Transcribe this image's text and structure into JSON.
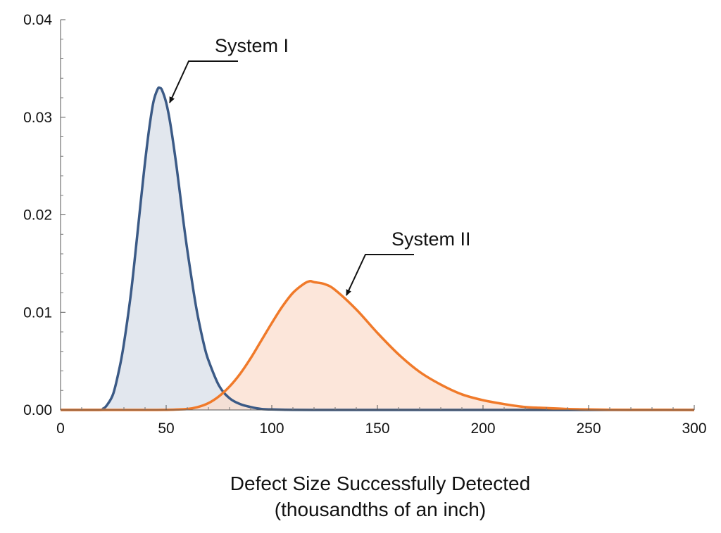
{
  "chart_data": {
    "type": "area",
    "title": "",
    "xlabel_lines": [
      "Defect Size Successfully Detected",
      "(thousandths of an inch)"
    ],
    "ylabel": "",
    "xlim": [
      0,
      300
    ],
    "ylim": [
      0,
      0.04
    ],
    "x_ticks": [
      0,
      50,
      100,
      150,
      200,
      250,
      300
    ],
    "x_tick_labels": [
      "0",
      "50",
      "100",
      "150",
      "200",
      "250",
      "300"
    ],
    "y_ticks": [
      0,
      0.01,
      0.02,
      0.03,
      0.04
    ],
    "y_tick_labels": [
      "0.00",
      "0.01",
      "0.02",
      "0.03",
      "0.04"
    ],
    "grid": false,
    "legend": "none",
    "series": [
      {
        "name": "System I",
        "color": "#3b5a86",
        "fill": "#d7dee7",
        "peak_x": 47,
        "peak_y": 0.033,
        "x": [
          0,
          18,
          20,
          22,
          25,
          28,
          30,
          33,
          35,
          38,
          40,
          42,
          44,
          46,
          47,
          48,
          50,
          52,
          55,
          58,
          60,
          63,
          65,
          68,
          70,
          75,
          80,
          85,
          90,
          95,
          100,
          110,
          120,
          130,
          300
        ],
        "y": [
          0,
          0,
          0.0001,
          0.0005,
          0.0017,
          0.0044,
          0.0068,
          0.0114,
          0.0152,
          0.0214,
          0.0254,
          0.0289,
          0.0316,
          0.0329,
          0.033,
          0.0328,
          0.0315,
          0.0293,
          0.0248,
          0.0196,
          0.0164,
          0.0121,
          0.0096,
          0.0066,
          0.0051,
          0.0025,
          0.0012,
          0.0006,
          0.0003,
          0.0001,
          5e-05,
          1e-05,
          0,
          0,
          0
        ]
      },
      {
        "name": "System II",
        "color": "#f07a2a",
        "fill": "#fbdccc",
        "peak_x": 118,
        "peak_y": 0.0132,
        "x": [
          0,
          40,
          50,
          60,
          65,
          70,
          75,
          80,
          85,
          90,
          95,
          100,
          105,
          110,
          115,
          118,
          120,
          125,
          130,
          140,
          150,
          160,
          170,
          180,
          190,
          200,
          210,
          220,
          230,
          240,
          250,
          260,
          270,
          300
        ],
        "y": [
          0,
          0,
          1e-05,
          0.0001,
          0.0003,
          0.0007,
          0.0014,
          0.0024,
          0.0037,
          0.0053,
          0.0071,
          0.0089,
          0.0106,
          0.012,
          0.0129,
          0.0132,
          0.0131,
          0.0129,
          0.0123,
          0.0103,
          0.0079,
          0.0057,
          0.0039,
          0.0026,
          0.0016,
          0.001,
          0.0006,
          0.0003,
          0.0002,
          0.0001,
          5e-05,
          2e-05,
          1e-05,
          0
        ]
      }
    ],
    "annotations": [
      {
        "text": "System I",
        "series": 0
      },
      {
        "text": "System II",
        "series": 1
      }
    ]
  }
}
